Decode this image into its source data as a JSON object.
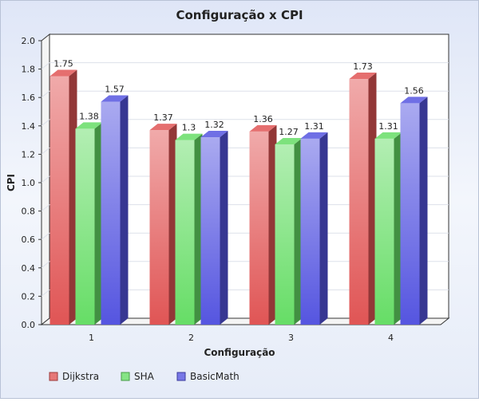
{
  "chart_data": {
    "type": "bar",
    "title": "Configuração x CPI",
    "xlabel": "Configuração",
    "ylabel": "CPI",
    "categories": [
      "1",
      "2",
      "3",
      "4"
    ],
    "series": [
      {
        "name": "Dijkstra",
        "values": [
          1.75,
          1.37,
          1.36,
          1.73
        ],
        "labels": [
          "1.75",
          "1.37",
          "1.36",
          "1.73"
        ],
        "color": "#e05555"
      },
      {
        "name": "SHA",
        "values": [
          1.38,
          1.3,
          1.27,
          1.31
        ],
        "labels": [
          "1.38",
          "1.3",
          "1.27",
          "1.31"
        ],
        "color": "#66dd66"
      },
      {
        "name": "BasicMath",
        "values": [
          1.57,
          1.32,
          1.31,
          1.56
        ],
        "labels": [
          "1.57",
          "1.32",
          "1.31",
          "1.56"
        ],
        "color": "#5555e0"
      }
    ],
    "ylim": [
      0,
      2.0
    ],
    "yticks": [
      "0.0",
      "0.2",
      "0.4",
      "0.6",
      "0.8",
      "1.0",
      "1.2",
      "1.4",
      "1.6",
      "1.8",
      "2.0"
    ],
    "grid": true,
    "legend_position": "bottom-left",
    "background": "#e9eef9",
    "plot_background": "#ffffff"
  }
}
